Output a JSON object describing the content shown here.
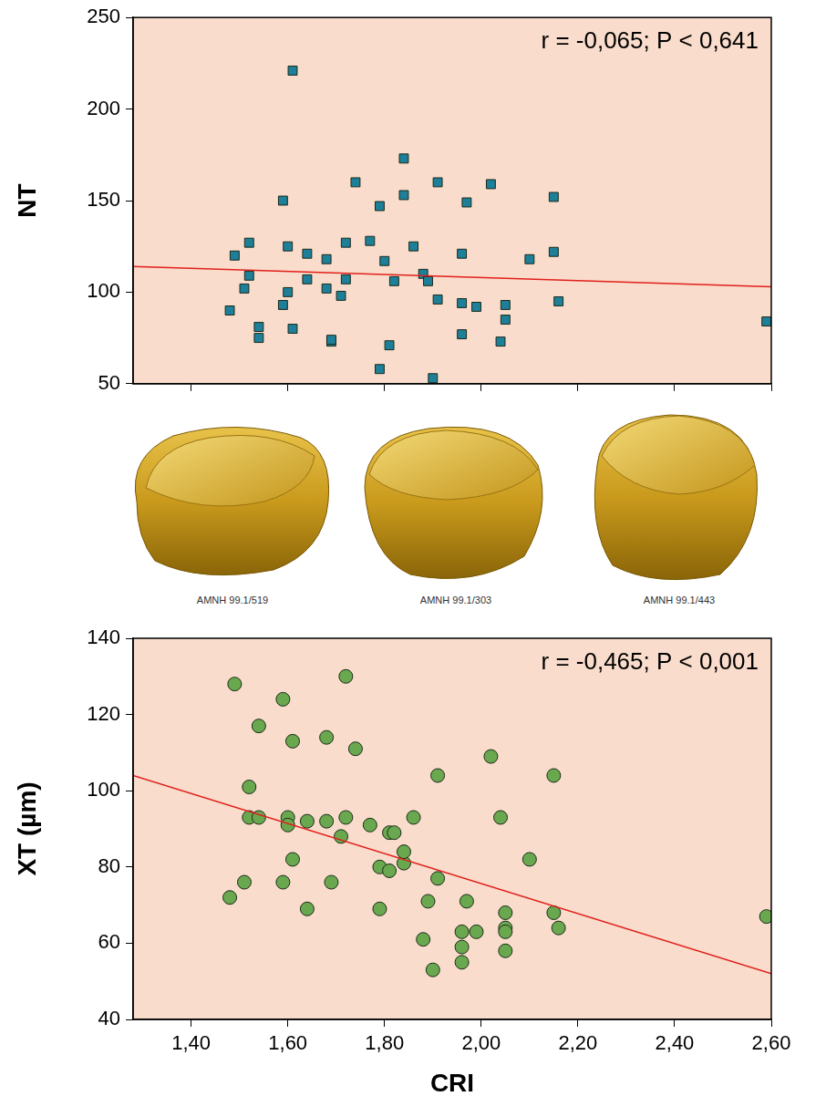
{
  "chart_data": [
    {
      "type": "scatter",
      "ylabel": "NT",
      "annotation": "r = -0,065; P < 0,641",
      "marker": "square",
      "color": "#1e7f99",
      "x": [
        1.48,
        1.49,
        1.51,
        1.52,
        1.52,
        1.54,
        1.54,
        1.59,
        1.59,
        1.6,
        1.6,
        1.61,
        1.61,
        1.64,
        1.64,
        1.68,
        1.68,
        1.69,
        1.69,
        1.71,
        1.72,
        1.72,
        1.74,
        1.77,
        1.79,
        1.79,
        1.8,
        1.81,
        1.82,
        1.84,
        1.84,
        1.86,
        1.88,
        1.89,
        1.9,
        1.91,
        1.91,
        1.96,
        1.96,
        1.96,
        1.97,
        1.99,
        2.02,
        2.04,
        2.05,
        2.05,
        2.1,
        2.15,
        2.15,
        2.16,
        2.59
      ],
      "values": [
        90,
        120,
        102,
        127,
        109,
        81,
        75,
        150,
        93,
        125,
        100,
        221,
        80,
        107,
        121,
        118,
        102,
        73,
        74,
        98,
        127,
        107,
        160,
        128,
        147,
        58,
        117,
        71,
        106,
        173,
        153,
        125,
        110,
        106,
        53,
        160,
        96,
        121,
        77,
        94,
        149,
        92,
        159,
        73,
        93,
        85,
        118,
        152,
        122,
        95,
        84
      ],
      "trend": {
        "x": [
          1.28,
          2.6
        ],
        "values": [
          114,
          103
        ],
        "color": "#e0201b",
        "line_style": "solid"
      },
      "xlim": [
        1.28,
        2.6
      ],
      "ylim": [
        50,
        250
      ],
      "xticks": [
        1.4,
        1.6,
        1.8,
        2.0,
        2.2,
        2.4,
        2.6
      ],
      "yticks": [
        50,
        100,
        150,
        200,
        250
      ],
      "grid": false,
      "tick_labels": "y"
    },
    {
      "type": "scatter",
      "xlabel": "CRI",
      "ylabel": "XT (µm)",
      "annotation": "r = -0,465; P < 0,001",
      "marker": "circle",
      "color": "#6aa84f",
      "x": [
        1.48,
        1.49,
        1.51,
        1.52,
        1.52,
        1.54,
        1.54,
        1.59,
        1.59,
        1.6,
        1.6,
        1.61,
        1.61,
        1.64,
        1.64,
        1.68,
        1.68,
        1.69,
        1.71,
        1.72,
        1.72,
        1.74,
        1.77,
        1.79,
        1.79,
        1.81,
        1.81,
        1.82,
        1.84,
        1.84,
        1.86,
        1.88,
        1.89,
        1.9,
        1.91,
        1.91,
        1.96,
        1.96,
        1.96,
        1.97,
        1.99,
        2.02,
        2.04,
        2.05,
        2.05,
        2.05,
        2.05,
        2.1,
        2.15,
        2.15,
        2.16,
        2.59
      ],
      "values": [
        72,
        128,
        76,
        101,
        93,
        117,
        93,
        124,
        76,
        93,
        91,
        113,
        82,
        69,
        92,
        114,
        92,
        76,
        88,
        93,
        130,
        111,
        91,
        69,
        80,
        89,
        79,
        89,
        81,
        84,
        93,
        61,
        71,
        53,
        77,
        104,
        63,
        59,
        55,
        71,
        63,
        109,
        93,
        68,
        64,
        63,
        58,
        82,
        104,
        68,
        64,
        67
      ],
      "trend": {
        "x": [
          1.28,
          2.6
        ],
        "values": [
          104,
          52
        ],
        "color": "#e0201b",
        "line_style": "solid"
      },
      "xlim": [
        1.28,
        2.6
      ],
      "ylim": [
        40,
        140
      ],
      "xticks": [
        {
          "value": 1.4,
          "label": "1,40"
        },
        {
          "value": 1.6,
          "label": "1,60"
        },
        {
          "value": 1.8,
          "label": "1,80"
        },
        {
          "value": 2.0,
          "label": "2,00"
        },
        {
          "value": 2.2,
          "label": "2,20"
        },
        {
          "value": 2.4,
          "label": "2,40"
        },
        {
          "value": 2.6,
          "label": "2,60"
        }
      ],
      "yticks": [
        40,
        60,
        80,
        100,
        120,
        140
      ],
      "grid": false
    }
  ],
  "specimen_labels": [
    "AMNH 99.1/519",
    "AMNH 99.1/303",
    "AMNH 99.1/443"
  ]
}
